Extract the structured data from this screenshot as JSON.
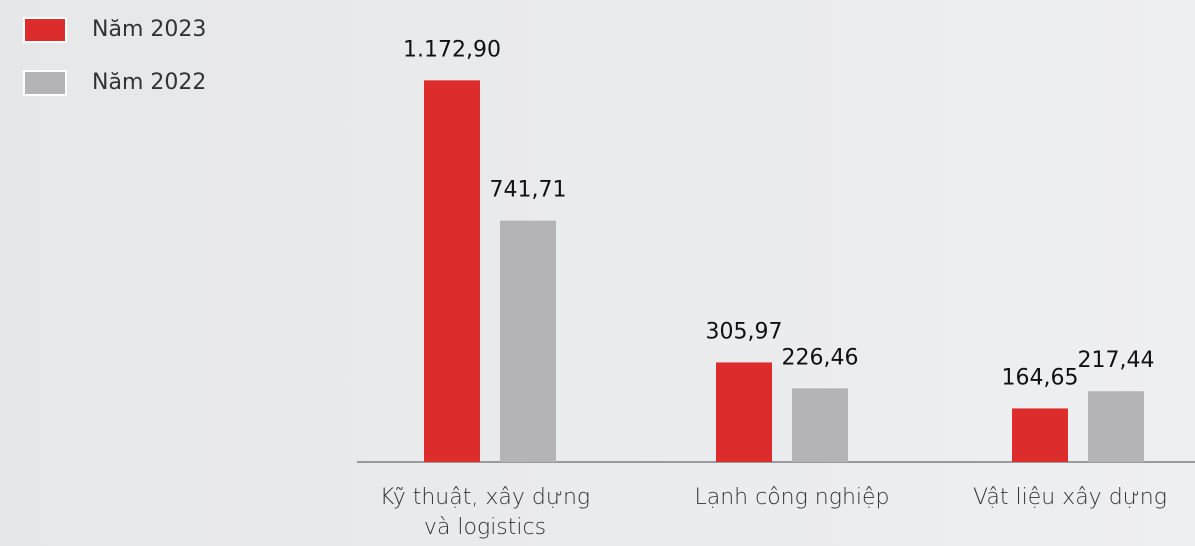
{
  "chart_data": {
    "type": "bar",
    "categories": [
      "Kỹ thuật, xây dựng và logistics",
      "Lạnh công nghiệp",
      "Vật liệu xây dựng"
    ],
    "series": [
      {
        "name": "Năm 2023",
        "color": "#dd2c2c",
        "values": [
          1172.9,
          305.97,
          164.65
        ],
        "value_labels": [
          "1.172,90",
          "305,97",
          "164,65"
        ]
      },
      {
        "name": "Năm 2022",
        "color": "#b4b4b6",
        "values": [
          741.71,
          226.46,
          217.44
        ],
        "value_labels": [
          "741,71",
          "226,46",
          "217,44"
        ]
      }
    ],
    "ylim": [
      0,
      1300
    ],
    "legend": "top-left"
  }
}
